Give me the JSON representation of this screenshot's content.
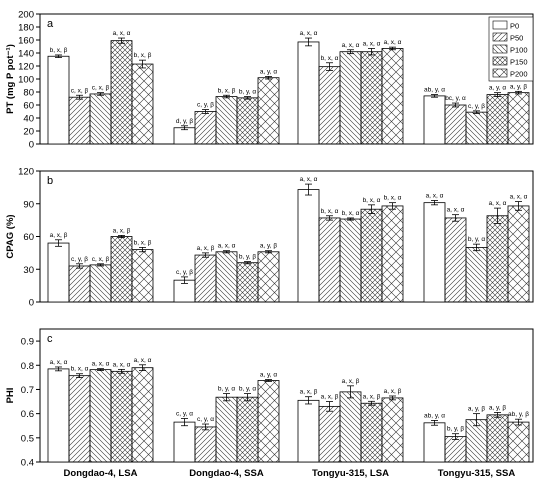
{
  "chart_data": {
    "type": "bar",
    "categories": [
      "Dongdao-4, LSA",
      "Dongdao-4, SSA",
      "Tongyu-315, LSA",
      "Tongyu-315, SSA"
    ],
    "legend": {
      "placement": "top-right",
      "entries": [
        "P0",
        "P50",
        "P100",
        "P150",
        "P200"
      ]
    },
    "panels": [
      {
        "letter": "a",
        "ylabel": "PT (mg P pot⁻¹)",
        "ylim": [
          0,
          200
        ],
        "yticks": [
          "0",
          "20",
          "40",
          "60",
          "80",
          "100",
          "120",
          "140",
          "160",
          "180",
          "200"
        ],
        "tick_values": [
          0,
          20,
          40,
          60,
          80,
          100,
          120,
          140,
          160,
          180,
          200
        ],
        "series": [
          {
            "name": "P0",
            "values": [
              135,
              25,
              157,
              74
            ],
            "errors": [
              2,
              3,
              6,
              2
            ],
            "labels": [
              "b, x, β",
              "d, y, β",
              "a, x, α",
              "ab, y, α"
            ]
          },
          {
            "name": "P50",
            "values": [
              72,
              50,
              119,
              60
            ],
            "errors": [
              3,
              3,
              6,
              3
            ],
            "labels": [
              "c, x, β",
              "c, y, β",
              "b, x, α",
              "bc, y, α"
            ]
          },
          {
            "name": "P100",
            "values": [
              77,
              73,
              142,
              49
            ],
            "errors": [
              2,
              2,
              3,
              2
            ],
            "labels": [
              "c, x, β",
              "b, x, β",
              "a, x, α",
              "c, y, β"
            ]
          },
          {
            "name": "P150",
            "values": [
              159,
              71,
              142,
              76
            ],
            "errors": [
              4,
              2,
              5,
              3
            ],
            "labels": [
              "a, x, α",
              "b, y, α",
              "a, x, α",
              "a, y, α"
            ]
          },
          {
            "name": "P200",
            "values": [
              123,
              102,
              147,
              79
            ],
            "errors": [
              6,
              2,
              2,
              2
            ],
            "labels": [
              "b, x, β",
              "a, y, α",
              "a, x, α",
              "a, y, β"
            ]
          }
        ]
      },
      {
        "letter": "b",
        "ylabel": "CPAG (%)",
        "ylim": [
          0,
          120
        ],
        "yticks": [
          "0",
          "30",
          "60",
          "90",
          "120"
        ],
        "tick_values": [
          0,
          30,
          60,
          90,
          120
        ],
        "series": [
          {
            "name": "P0",
            "values": [
              54,
              20,
              103,
              91
            ],
            "errors": [
              3,
              3,
              5,
              2
            ],
            "labels": [
              "a, x, β",
              "c, y, β",
              "a, x, α",
              "a, x, α"
            ]
          },
          {
            "name": "P50",
            "values": [
              33,
              43,
              77,
              77
            ],
            "errors": [
              2,
              2,
              2,
              3
            ],
            "labels": [
              "c, y, β",
              "a, x, β",
              "b, x, α",
              "a, x, α"
            ]
          },
          {
            "name": "P100",
            "values": [
              34,
              46,
              76,
              50
            ],
            "errors": [
              1,
              1,
              1,
              3
            ],
            "labels": [
              "c, x, β",
              "a, x, α",
              "b, x, α",
              "b, y, α"
            ]
          },
          {
            "name": "P150",
            "values": [
              60,
              36,
              85,
              79
            ],
            "errors": [
              1,
              1,
              4,
              7
            ],
            "labels": [
              "a, x, β",
              "b, y, β",
              "b, x, α",
              "a, x, α"
            ]
          },
          {
            "name": "P200",
            "values": [
              48,
              46,
              88,
              88
            ],
            "errors": [
              2,
              1,
              3,
              4
            ],
            "labels": [
              "b, x, β",
              "a, y, β",
              "b, x, α",
              "a, x, α"
            ]
          }
        ]
      },
      {
        "letter": "c",
        "ylabel": "PHI",
        "ylim": [
          0.4,
          0.95
        ],
        "yticks": [
          "0.4",
          "0.5",
          "0.6",
          "0.7",
          "0.8",
          "0.9"
        ],
        "tick_values": [
          0.4,
          0.5,
          0.6,
          0.7,
          0.8,
          0.9
        ],
        "series": [
          {
            "name": "P0",
            "values": [
              0.785,
              0.565,
              0.655,
              0.562
            ],
            "errors": [
              0.008,
              0.015,
              0.015,
              0.01
            ],
            "labels": [
              "a, x, α",
              "c, y, α",
              "a, x, β",
              "ab, y, α"
            ]
          },
          {
            "name": "P50",
            "values": [
              0.757,
              0.545,
              0.63,
              0.505
            ],
            "errors": [
              0.008,
              0.012,
              0.02,
              0.012
            ],
            "labels": [
              "b, x, α",
              "c, y, α",
              "a, x, β",
              "b, y, β"
            ]
          },
          {
            "name": "P100",
            "values": [
              0.782,
              0.668,
              0.69,
              0.575
            ],
            "errors": [
              0.004,
              0.015,
              0.025,
              0.025
            ],
            "labels": [
              "a, x, α",
              "b, y, α",
              "a, x, β",
              "a, y, β"
            ]
          },
          {
            "name": "P150",
            "values": [
              0.775,
              0.668,
              0.643,
              0.595
            ],
            "errors": [
              0.008,
              0.015,
              0.008,
              0.01
            ],
            "labels": [
              "a, x, α",
              "b, y, α",
              "a, x, β",
              "a, y, β"
            ]
          },
          {
            "name": "P200",
            "values": [
              0.79,
              0.737,
              0.665,
              0.565
            ],
            "errors": [
              0.012,
              0.004,
              0.008,
              0.012
            ],
            "labels": [
              "a, x, α",
              "a, y, α",
              "a, x, β",
              "ab, y, β"
            ]
          }
        ]
      }
    ]
  }
}
